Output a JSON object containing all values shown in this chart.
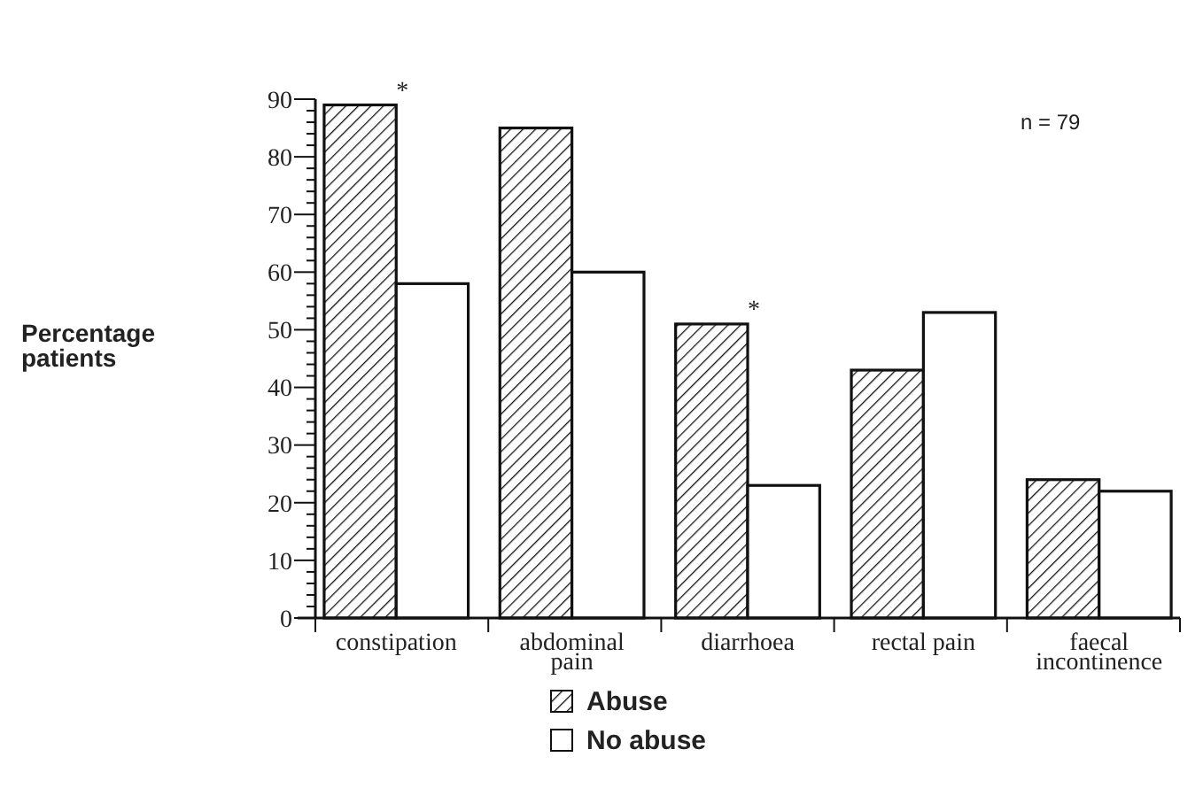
{
  "chart_data": {
    "type": "bar",
    "ylabel": "Percentage\npatients",
    "categories": [
      "constipation",
      "abdominal\npain",
      "diarrhoea",
      "rectal pain",
      "faecal\nincontinence"
    ],
    "series": [
      {
        "name": "Abuse",
        "color": "#111111",
        "values": [
          89,
          85,
          51,
          43,
          24
        ]
      },
      {
        "name": "No abuse",
        "color": "#ffffff",
        "values": [
          58,
          60,
          23,
          53,
          22
        ]
      }
    ],
    "ylim": [
      0,
      90
    ],
    "yticks": [
      0,
      {
        "value": 2,
        "label": null
      },
      {
        "value": 4,
        "label": null
      },
      {
        "value": 6,
        "label": null
      },
      {
        "value": 8,
        "label": null
      },
      10,
      {
        "value": 12,
        "label": null
      },
      {
        "value": 14,
        "label": null
      },
      {
        "value": 16,
        "label": null
      },
      {
        "value": 18,
        "label": null
      },
      20,
      {
        "value": 22,
        "label": null
      },
      {
        "value": 24,
        "label": null
      },
      {
        "value": 26,
        "label": null
      },
      {
        "value": 28,
        "label": null
      },
      30,
      {
        "value": 32,
        "label": null
      },
      {
        "value": 34,
        "label": null
      },
      {
        "value": 36,
        "label": null
      },
      {
        "value": 38,
        "label": null
      },
      40,
      {
        "value": 42,
        "label": null
      },
      {
        "value": 44,
        "label": null
      },
      {
        "value": 46,
        "label": null
      },
      {
        "value": 48,
        "label": null
      },
      50,
      {
        "value": 52,
        "label": null
      },
      {
        "value": 54,
        "label": null
      },
      {
        "value": 56,
        "label": null
      },
      {
        "value": 58,
        "label": null
      },
      60,
      {
        "value": 62,
        "label": null
      },
      {
        "value": 64,
        "label": null
      },
      {
        "value": 66,
        "label": null
      },
      {
        "value": 68,
        "label": null
      },
      70,
      {
        "value": 72,
        "label": null
      },
      {
        "value": 74,
        "label": null
      },
      {
        "value": 76,
        "label": null
      },
      {
        "value": 78,
        "label": null
      },
      80,
      {
        "value": 82,
        "label": null
      },
      {
        "value": 84,
        "label": null
      },
      {
        "value": 86,
        "label": null
      },
      {
        "value": 88,
        "label": null
      },
      90
    ],
    "annotations": [
      {
        "text": "*",
        "x": "constipation",
        "y": 89
      },
      {
        "text": "*",
        "x": "diarrhoea",
        "y": 51
      },
      "n = 79"
    ],
    "grid": false,
    "legend": "bottom"
  }
}
